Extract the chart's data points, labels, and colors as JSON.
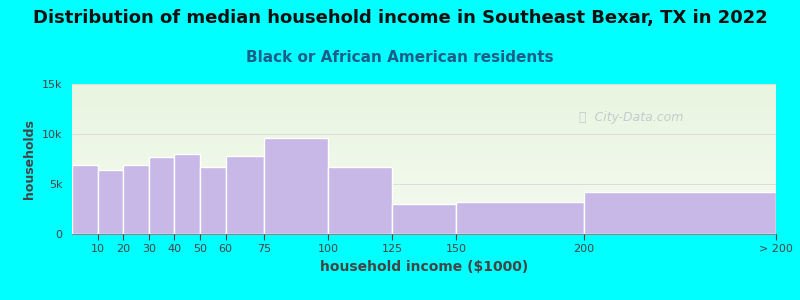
{
  "title": "Distribution of median household income in Southeast Bexar, TX in 2022",
  "subtitle": "Black or African American residents",
  "xlabel": "household income ($1000)",
  "ylabel": "households",
  "background_color": "#00FFFF",
  "plot_bg_top": "#e8f5e0",
  "plot_bg_bottom": "#f5faf0",
  "bar_color": "#c8b8e8",
  "bar_edge_color": "#ffffff",
  "bar_linewidth": 1.0,
  "categories": [
    "10",
    "20",
    "30",
    "40",
    "50",
    "60",
    "75",
    "100",
    "125",
    "150",
    "200",
    "> 200"
  ],
  "left_edges": [
    0,
    10,
    20,
    30,
    40,
    50,
    60,
    75,
    100,
    125,
    150,
    200
  ],
  "widths": [
    10,
    10,
    10,
    10,
    10,
    10,
    15,
    25,
    25,
    25,
    50,
    75
  ],
  "values": [
    6900,
    6400,
    6900,
    7700,
    8000,
    6700,
    7800,
    9600,
    6700,
    3000,
    3200,
    4200
  ],
  "ylim": [
    0,
    15000
  ],
  "yticks": [
    0,
    5000,
    10000,
    15000
  ],
  "ytick_labels": [
    "0",
    "5k",
    "10k",
    "15k"
  ],
  "xlim": [
    0,
    275
  ],
  "tick_positions": [
    10,
    20,
    30,
    40,
    50,
    60,
    75,
    100,
    125,
    150,
    200,
    275
  ],
  "tick_labels": [
    "10",
    "20",
    "30",
    "40",
    "50",
    "60",
    "75",
    "100",
    "125",
    "150",
    "200",
    "> 200"
  ],
  "title_fontsize": 13,
  "subtitle_fontsize": 11,
  "watermark_text": "Ⓢ  City-Data.com",
  "watermark_color": "#aab0c0",
  "watermark_alpha": 0.6,
  "label_color": "#444444",
  "title_color": "#111111",
  "subtitle_color": "#1a5f88"
}
